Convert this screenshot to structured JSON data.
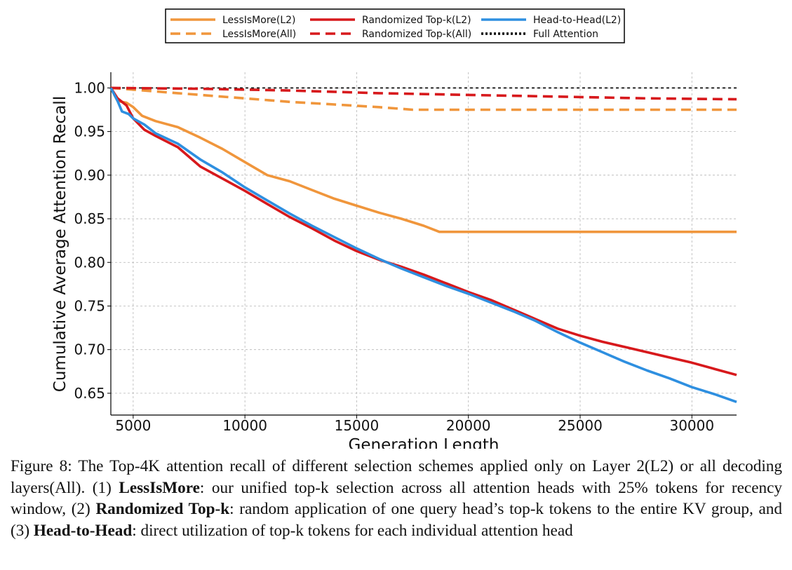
{
  "chart_data": {
    "type": "line",
    "xlabel": "Generation Length",
    "ylabel": "Cumulative Average Attention Recall",
    "xlim": [
      4000,
      32000
    ],
    "ylim": [
      0.625,
      1.018
    ],
    "x_ticks": [
      5000,
      10000,
      15000,
      20000,
      25000,
      30000
    ],
    "y_ticks": [
      0.65,
      0.7,
      0.75,
      0.8,
      0.85,
      0.9,
      0.95,
      1.0
    ],
    "grid": true,
    "legend_position": "top-center",
    "series": [
      {
        "name": "LessIsMore(L2)",
        "color": "#F0963C",
        "style": "solid",
        "x": [
          4000,
          4300,
          4700,
          5000,
          5400,
          6000,
          7000,
          8000,
          9000,
          10000,
          11000,
          12000,
          13000,
          14000,
          15000,
          16000,
          17000,
          18000,
          18700,
          20000,
          25000,
          30000,
          32000
        ],
        "y": [
          1.0,
          0.985,
          0.983,
          0.978,
          0.968,
          0.962,
          0.955,
          0.943,
          0.93,
          0.915,
          0.9,
          0.893,
          0.883,
          0.873,
          0.865,
          0.857,
          0.85,
          0.842,
          0.835,
          0.835,
          0.835,
          0.835,
          0.835
        ]
      },
      {
        "name": "LessIsMore(All)",
        "color": "#F0963C",
        "style": "dashed",
        "x": [
          4000,
          6000,
          8000,
          10000,
          12000,
          14000,
          16000,
          17500,
          20000,
          25000,
          30000,
          32000
        ],
        "y": [
          1.0,
          0.996,
          0.992,
          0.988,
          0.984,
          0.981,
          0.978,
          0.975,
          0.975,
          0.975,
          0.975,
          0.975
        ]
      },
      {
        "name": "Randomized Top-k(L2)",
        "color": "#D7191C",
        "style": "solid",
        "x": [
          4000,
          4300,
          4700,
          5000,
          5500,
          6000,
          7000,
          8000,
          9000,
          10000,
          11000,
          12000,
          13000,
          14000,
          15000,
          16000,
          17000,
          18000,
          19000,
          20000,
          21000,
          22000,
          23000,
          24000,
          25000,
          26000,
          27000,
          28000,
          29000,
          30000,
          31000,
          32000
        ],
        "y": [
          1.0,
          0.988,
          0.98,
          0.965,
          0.952,
          0.945,
          0.932,
          0.91,
          0.896,
          0.882,
          0.867,
          0.852,
          0.839,
          0.825,
          0.813,
          0.803,
          0.795,
          0.786,
          0.776,
          0.766,
          0.757,
          0.746,
          0.735,
          0.724,
          0.716,
          0.709,
          0.703,
          0.697,
          0.691,
          0.685,
          0.678,
          0.671
        ]
      },
      {
        "name": "Randomized Top-k(All)",
        "color": "#D7191C",
        "style": "dashed",
        "x": [
          4000,
          8000,
          12000,
          16000,
          20000,
          24000,
          28000,
          32000
        ],
        "y": [
          1.0,
          0.999,
          0.997,
          0.994,
          0.992,
          0.99,
          0.988,
          0.987
        ]
      },
      {
        "name": "Head-to-Head(L2)",
        "color": "#2E8FE0",
        "style": "solid",
        "x": [
          4000,
          4300,
          4500,
          4800,
          5000,
          5500,
          6000,
          7000,
          8000,
          9000,
          10000,
          11000,
          12000,
          13000,
          14000,
          15000,
          16000,
          17000,
          18000,
          19000,
          20000,
          21000,
          22000,
          23000,
          24000,
          25000,
          26000,
          27000,
          28000,
          29000,
          30000,
          31000,
          32000
        ],
        "y": [
          1.0,
          0.985,
          0.973,
          0.97,
          0.965,
          0.958,
          0.948,
          0.936,
          0.918,
          0.903,
          0.886,
          0.871,
          0.856,
          0.842,
          0.829,
          0.816,
          0.804,
          0.793,
          0.783,
          0.773,
          0.764,
          0.754,
          0.744,
          0.733,
          0.72,
          0.708,
          0.697,
          0.686,
          0.676,
          0.667,
          0.657,
          0.649,
          0.64
        ]
      },
      {
        "name": "Full Attention",
        "color": "#000000",
        "style": "dotted",
        "x": [
          4000,
          32000
        ],
        "y": [
          1.0,
          1.0
        ]
      }
    ]
  },
  "caption": {
    "prefix": "Figure 8: The Top-4K attention recall of different selection schemes applied only on Layer 2(L2) or all decoding layers(All). (1) ",
    "term1": "LessIsMore",
    "text1": ": our unified top-k selection across all attention heads with 25% tokens for recency window, (2) ",
    "term2": "Randomized Top-k",
    "text2": ": random application of one query head’s top-k tokens to the entire KV group, and (3) ",
    "term3": "Head-to-Head",
    "text3": ": direct utilization of top-k tokens for each individual attention head"
  }
}
